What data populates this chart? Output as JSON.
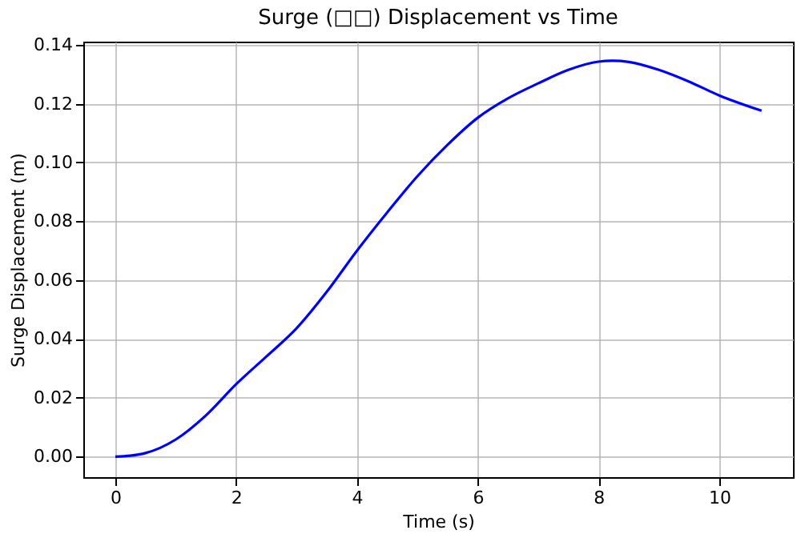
{
  "chart_data": {
    "type": "line",
    "title": "Surge (□□) Displacement vs Time",
    "xlabel": "Time (s)",
    "ylabel": "Surge Displacement (m)",
    "x": [
      0,
      0.25,
      0.5,
      1,
      1.5,
      2,
      2.5,
      3,
      3.5,
      4,
      4.5,
      5,
      5.5,
      6,
      6.5,
      7,
      7.5,
      8,
      8.25,
      8.5,
      9,
      9.5,
      10,
      10.7
    ],
    "series": [
      {
        "color": "#0000ff",
        "values": [
          0,
          0.0003,
          0.0012,
          0.0058,
          0.014,
          0.0246,
          0.034,
          0.0436,
          0.056,
          0.07,
          0.083,
          0.0953,
          0.106,
          0.1152,
          0.1218,
          0.1269,
          0.1315,
          0.1343,
          0.1346,
          0.1342,
          0.1315,
          0.1275,
          0.1228,
          0.1176
        ]
      }
    ],
    "xlim": [
      -0.53,
      11.22
    ],
    "ylim": [
      -0.007,
      0.1411
    ],
    "xticks": [
      0,
      2,
      4,
      6,
      8,
      10
    ],
    "yticks": [
      {
        "value": 0,
        "label": "0.00"
      },
      {
        "value": 0.02,
        "label": "0.02"
      },
      {
        "value": 0.04,
        "label": "0.04"
      },
      {
        "value": 0.06,
        "label": "0.06"
      },
      {
        "value": 0.08,
        "label": "0.08"
      },
      {
        "value": 0.1,
        "label": "0.10"
      },
      {
        "value": 0.12,
        "label": "0.12"
      },
      {
        "value": 0.14,
        "label": "0.14"
      }
    ],
    "grid": true,
    "line_style": "solid",
    "marker": "none"
  }
}
